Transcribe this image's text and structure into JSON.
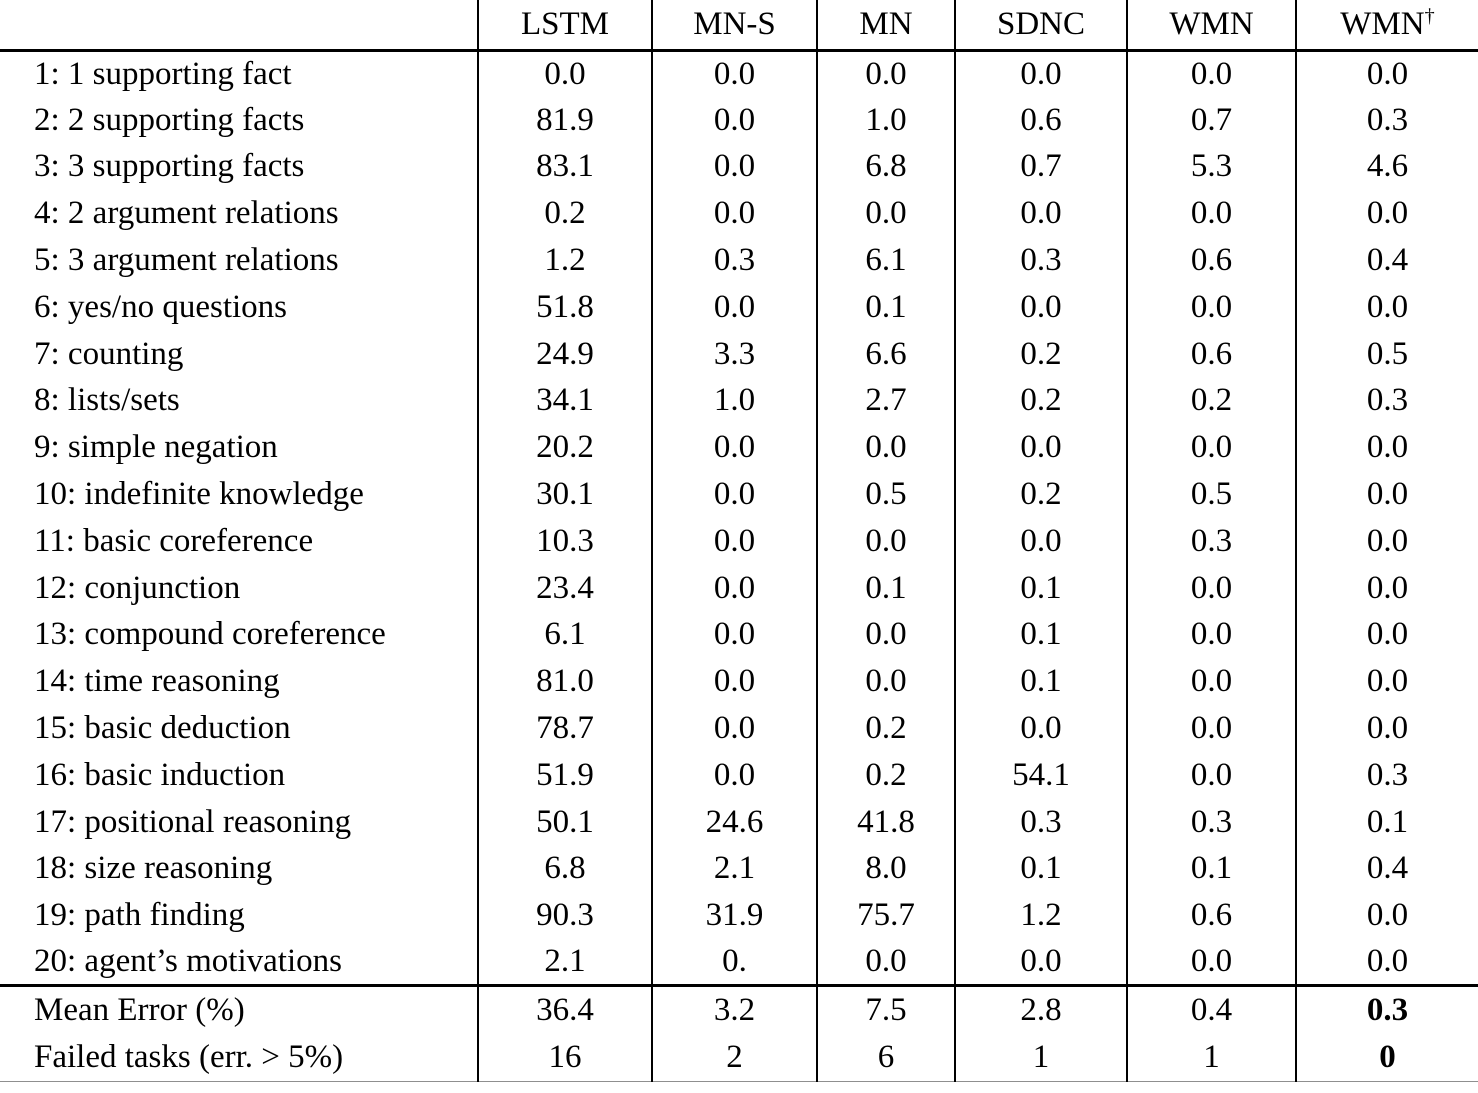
{
  "table": {
    "columns": [
      {
        "label": "LSTM",
        "sup": ""
      },
      {
        "label": "MN-S",
        "sup": ""
      },
      {
        "label": "MN",
        "sup": ""
      },
      {
        "label": "SDNC",
        "sup": ""
      },
      {
        "label": "WMN",
        "sup": ""
      },
      {
        "label": "WMN",
        "sup": "†"
      }
    ],
    "rows": [
      {
        "label": "1: 1 supporting fact",
        "values": [
          "0.0",
          "0.0",
          "0.0",
          "0.0",
          "0.0",
          "0.0"
        ]
      },
      {
        "label": "2: 2 supporting facts",
        "values": [
          "81.9",
          "0.0",
          "1.0",
          "0.6",
          "0.7",
          "0.3"
        ]
      },
      {
        "label": "3: 3 supporting facts",
        "values": [
          "83.1",
          "0.0",
          "6.8",
          "0.7",
          "5.3",
          "4.6"
        ]
      },
      {
        "label": "4: 2 argument relations",
        "values": [
          "0.2",
          "0.0",
          "0.0",
          "0.0",
          "0.0",
          "0.0"
        ]
      },
      {
        "label": "5: 3 argument relations",
        "values": [
          "1.2",
          "0.3",
          "6.1",
          "0.3",
          "0.6",
          "0.4"
        ]
      },
      {
        "label": "6: yes/no questions",
        "values": [
          "51.8",
          "0.0",
          "0.1",
          "0.0",
          "0.0",
          "0.0"
        ]
      },
      {
        "label": "7: counting",
        "values": [
          "24.9",
          "3.3",
          "6.6",
          "0.2",
          "0.6",
          "0.5"
        ]
      },
      {
        "label": "8: lists/sets",
        "values": [
          "34.1",
          "1.0",
          "2.7",
          "0.2",
          "0.2",
          "0.3"
        ]
      },
      {
        "label": "9: simple negation",
        "values": [
          "20.2",
          "0.0",
          "0.0",
          "0.0",
          "0.0",
          "0.0"
        ]
      },
      {
        "label": "10: indefinite knowledge",
        "values": [
          "30.1",
          "0.0",
          "0.5",
          "0.2",
          "0.5",
          "0.0"
        ]
      },
      {
        "label": "11: basic coreference",
        "values": [
          "10.3",
          "0.0",
          "0.0",
          "0.0",
          "0.3",
          "0.0"
        ]
      },
      {
        "label": "12: conjunction",
        "values": [
          "23.4",
          "0.0",
          "0.1",
          "0.1",
          "0.0",
          "0.0"
        ]
      },
      {
        "label": "13: compound coreference",
        "values": [
          "6.1",
          "0.0",
          "0.0",
          "0.1",
          "0.0",
          "0.0"
        ]
      },
      {
        "label": "14: time reasoning",
        "values": [
          "81.0",
          "0.0",
          "0.0",
          "0.1",
          "0.0",
          "0.0"
        ]
      },
      {
        "label": "15: basic deduction",
        "values": [
          "78.7",
          "0.0",
          "0.2",
          "0.0",
          "0.0",
          "0.0"
        ]
      },
      {
        "label": "16: basic induction",
        "values": [
          "51.9",
          "0.0",
          "0.2",
          "54.1",
          "0.0",
          "0.3"
        ]
      },
      {
        "label": "17: positional reasoning",
        "values": [
          "50.1",
          "24.6",
          "41.8",
          "0.3",
          "0.3",
          "0.1"
        ]
      },
      {
        "label": "18: size reasoning",
        "values": [
          "6.8",
          "2.1",
          "8.0",
          "0.1",
          "0.1",
          "0.4"
        ]
      },
      {
        "label": "19: path finding",
        "values": [
          "90.3",
          "31.9",
          "75.7",
          "1.2",
          "0.6",
          "0.0"
        ]
      },
      {
        "label": "20: agent’s motivations",
        "values": [
          "2.1",
          "0.",
          "0.0",
          "0.0",
          "0.0",
          "0.0"
        ]
      }
    ],
    "summary": [
      {
        "label": "Mean Error (%)",
        "values": [
          "36.4",
          "3.2",
          "7.5",
          "2.8",
          "0.4",
          "0.3"
        ],
        "bold_last_value": true
      },
      {
        "label": "Failed tasks (err. > 5%)",
        "values": [
          "16",
          "2",
          "6",
          "1",
          "1",
          "0"
        ],
        "bold_last_value": true
      }
    ]
  }
}
